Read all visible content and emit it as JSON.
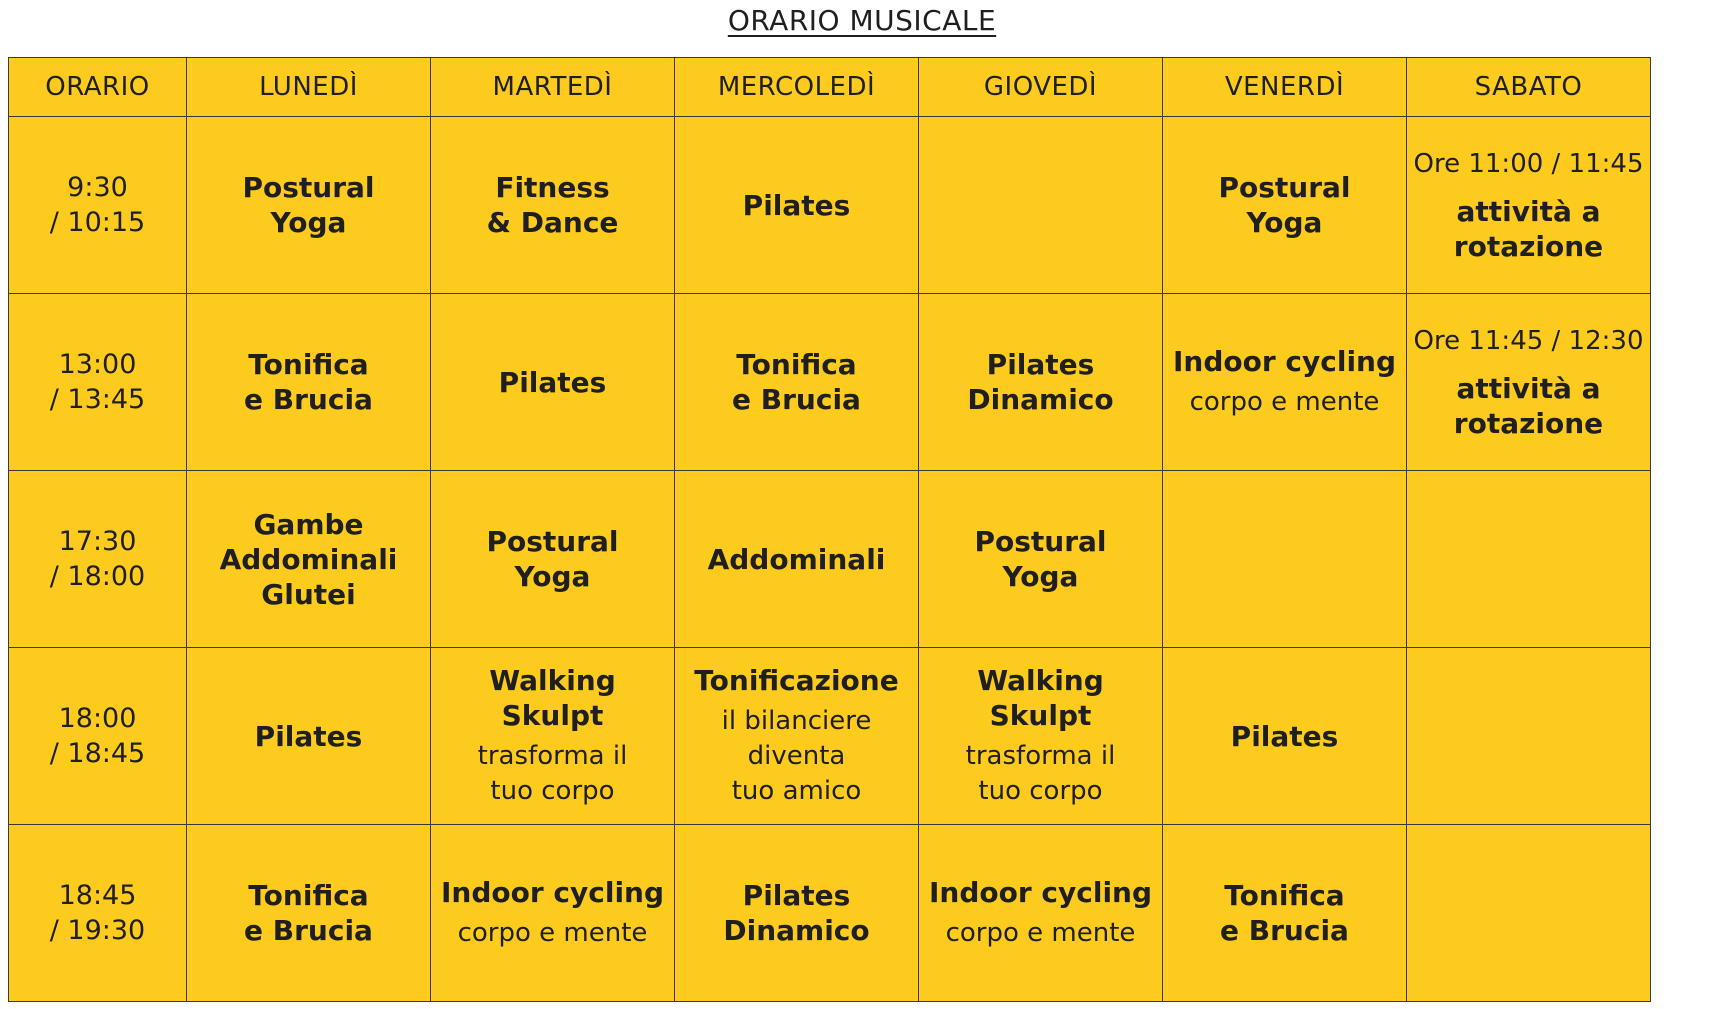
{
  "title": "ORARIO MUSICALE",
  "headers": [
    "ORARIO",
    "LUNEDÌ",
    "MARTEDÌ",
    "MERCOLEDÌ",
    "GIOVEDÌ",
    "VENERDÌ",
    "SABATO"
  ],
  "rows": [
    {
      "time": "9:30\n/ 10:15",
      "cells": [
        {
          "main": "Postural\nYoga"
        },
        {
          "main": "Fitness\n& Dance"
        },
        {
          "main": "Pilates"
        },
        {},
        {
          "main": "Postural\nYoga"
        },
        {
          "note": "Ore 11:00 / 11:45",
          "main": "attività a\nrotazione"
        }
      ]
    },
    {
      "time": "13:00\n/ 13:45",
      "cells": [
        {
          "main": "Tonifica\ne Brucia"
        },
        {
          "main": "Pilates"
        },
        {
          "main": "Tonifica\ne  Brucia"
        },
        {
          "main": "Pilates\nDinamico"
        },
        {
          "main": "Indoor cycling",
          "sub": "corpo e mente"
        },
        {
          "note": "Ore 11:45 / 12:30",
          "main": "attività a\nrotazione"
        }
      ]
    },
    {
      "time": "17:30\n/ 18:00",
      "cells": [
        {
          "main": "Gambe\nAddominali\nGlutei"
        },
        {
          "main": "Postural\nYoga"
        },
        {
          "main": "Addominali"
        },
        {
          "main": "Postural\nYoga"
        },
        {},
        {}
      ]
    },
    {
      "time": "18:00\n/ 18:45",
      "cells": [
        {
          "main": "Pilates"
        },
        {
          "main": "Walking Skulpt",
          "sub": "trasforma il\ntuo corpo"
        },
        {
          "main": "Tonificazione",
          "sub": "il bilanciere\ndiventa\ntuo amico"
        },
        {
          "main": "Walking Skulpt",
          "sub": "trasforma il\ntuo corpo"
        },
        {
          "main": "Pilates"
        },
        {}
      ]
    },
    {
      "time": "18:45\n/ 19:30",
      "cells": [
        {
          "main": "Tonifica\ne Brucia"
        },
        {
          "main": "Indoor cycling",
          "sub": "corpo e mente"
        },
        {
          "main": "Pilates\nDinamico"
        },
        {
          "main": "Indoor cycling",
          "sub": "corpo e mente"
        },
        {
          "main": "Tonifica\ne Brucia"
        },
        {}
      ]
    }
  ],
  "colors": {
    "background": "#FCCB1E",
    "border": "#3a3a3a",
    "text": "#1f1f1f"
  }
}
